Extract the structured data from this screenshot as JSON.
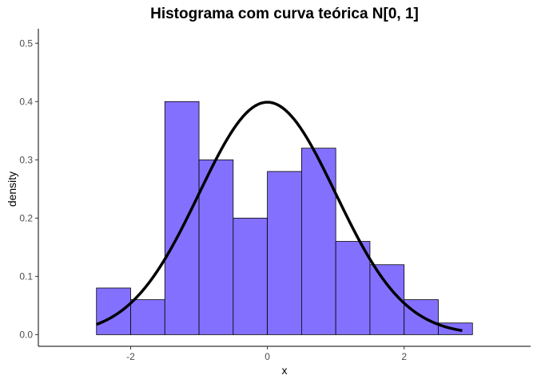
{
  "chart_data": {
    "type": "histogram",
    "title": "Histograma com curva teórica N[0, 1]",
    "xlabel": "x",
    "ylabel": "density",
    "xlim": [
      -3.35,
      3.85
    ],
    "ylim": [
      -0.02,
      0.525
    ],
    "x_ticks": [
      -2,
      0,
      2
    ],
    "x_tick_labels": [
      "-2",
      "0",
      "2"
    ],
    "y_ticks": [
      0.0,
      0.1,
      0.2,
      0.3,
      0.4,
      0.5
    ],
    "y_tick_labels": [
      "0.0",
      "0.1",
      "0.2",
      "0.3",
      "0.4",
      "0.5"
    ],
    "grid": false,
    "bins": [
      {
        "x0": -2.5,
        "x1": -2.0,
        "density": 0.08
      },
      {
        "x0": -2.0,
        "x1": -1.5,
        "density": 0.06
      },
      {
        "x0": -1.5,
        "x1": -1.0,
        "density": 0.4
      },
      {
        "x0": -1.0,
        "x1": -0.5,
        "density": 0.3
      },
      {
        "x0": -0.5,
        "x1": 0.0,
        "density": 0.2
      },
      {
        "x0": 0.0,
        "x1": 0.5,
        "density": 0.28
      },
      {
        "x0": 0.5,
        "x1": 1.0,
        "density": 0.32
      },
      {
        "x0": 1.0,
        "x1": 1.5,
        "density": 0.16
      },
      {
        "x0": 1.5,
        "x1": 2.0,
        "density": 0.12
      },
      {
        "x0": 2.0,
        "x1": 2.5,
        "density": 0.06
      },
      {
        "x0": 2.5,
        "x1": 3.0,
        "density": 0.02
      }
    ],
    "curve": {
      "type": "line",
      "x_range": [
        -2.5,
        2.85
      ],
      "mean": 0,
      "sd": 1
    },
    "colors": {
      "bar_fill": "#8470ff",
      "bar_stroke": "#000000",
      "curve": "#000000",
      "axis": "#000000",
      "tick_text": "#4d4d4d"
    }
  }
}
